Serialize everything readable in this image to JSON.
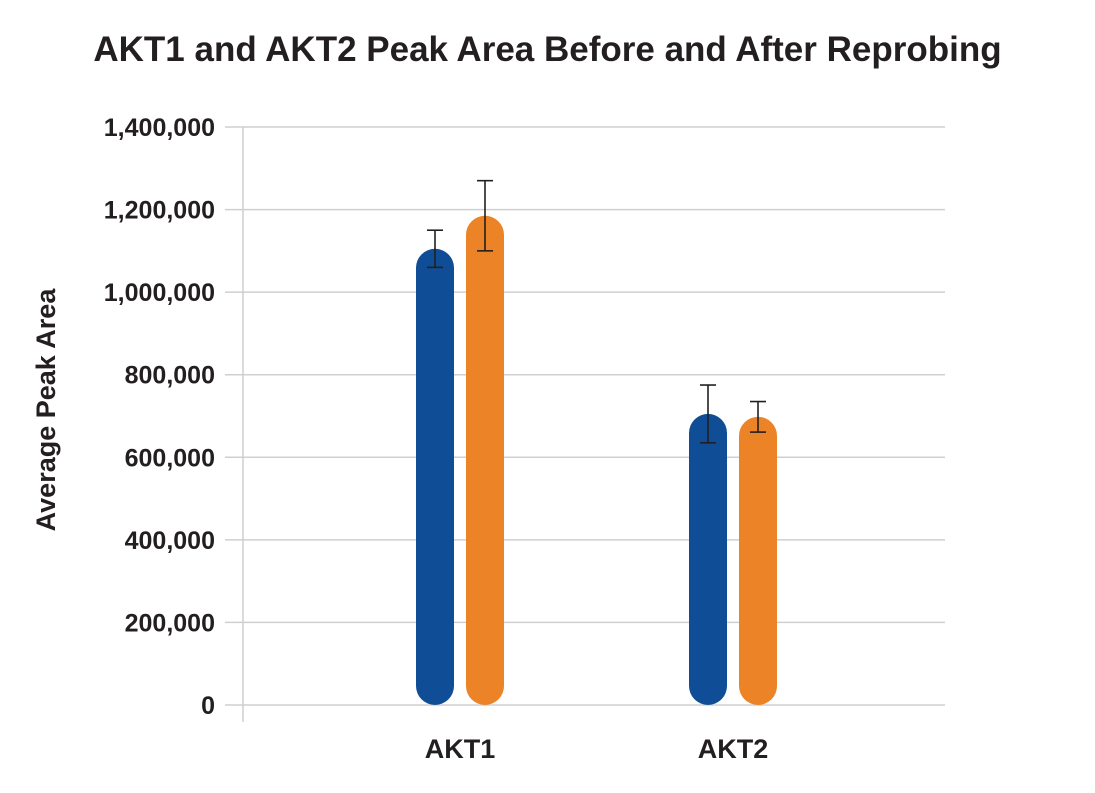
{
  "chart_data": {
    "type": "bar",
    "title": "AKT1 and AKT2 Peak Area Before and After Reprobing",
    "xlabel": "",
    "ylabel": "Average Peak Area",
    "ylim": [
      0,
      1400000
    ],
    "yticks": [
      0,
      200000,
      400000,
      600000,
      800000,
      1000000,
      1200000,
      1400000
    ],
    "ytick_labels": [
      "0",
      "200,000",
      "400,000",
      "600,000",
      "800,000",
      "1,000,000",
      "1,200,000",
      "1,400,000"
    ],
    "categories": [
      "AKT1",
      "AKT2"
    ],
    "series": [
      {
        "color": "#0f4e96",
        "values": [
          1105000,
          705000
        ],
        "error": [
          45000,
          70000
        ]
      },
      {
        "color": "#ec8327",
        "values": [
          1185000,
          698000
        ],
        "error": [
          85000,
          37000
        ]
      }
    ],
    "grid": true,
    "legend": "none"
  }
}
